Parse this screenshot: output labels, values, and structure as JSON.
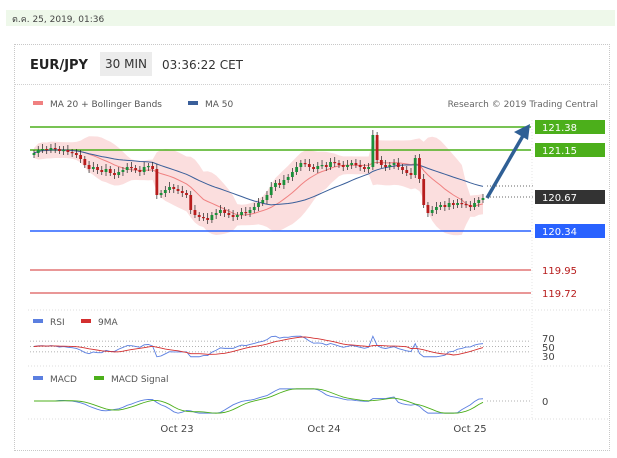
{
  "timestamp": "ต.ค. 25, 2019, 01:36",
  "header": {
    "pair": "EUR/JPY",
    "timeframe": "30 MIN",
    "clock": "03:36:22 CET"
  },
  "legend": {
    "ma20": "MA 20 + Bollinger Bands",
    "ma50": "MA 50",
    "credit": "Research © 2019 Trading Central"
  },
  "colors": {
    "green": "#4caf1b",
    "blue": "#2962ff",
    "red": "#d32f2f",
    "ma50": "#3a5f9a",
    "ma20": "#f08080",
    "band": "#f9d3d3",
    "current": "#333333",
    "arrow": "#2f5f95"
  },
  "levels": [
    {
      "value": "121.38",
      "kind": "resistance"
    },
    {
      "value": "121.15",
      "kind": "resistance"
    },
    {
      "value": "120.34",
      "kind": "support"
    },
    {
      "value": "119.95",
      "kind": "target"
    },
    {
      "value": "119.72",
      "kind": "target"
    }
  ],
  "current_price": "120.67",
  "rsi": {
    "label": "RSI",
    "ma_label": "9MA",
    "levels": [
      "70",
      "50",
      "30"
    ]
  },
  "macd": {
    "label": "MACD",
    "signal_label": "MACD Signal",
    "zero": "0"
  },
  "xaxis": {
    "ticks": [
      "Oct 23",
      "Oct 24",
      "Oct 25"
    ]
  },
  "chart_data": {
    "type": "candlestick",
    "pair": "EUR/JPY",
    "interval": "30 MIN",
    "ylim": [
      119.6,
      121.5
    ],
    "levels": [
      121.38,
      121.15,
      120.34,
      119.95,
      119.72
    ],
    "current": 120.67,
    "x_ticks": [
      "Oct 23",
      "Oct 24",
      "Oct 25"
    ],
    "closes": [
      121.12,
      121.15,
      121.16,
      121.15,
      121.17,
      121.16,
      121.14,
      121.15,
      121.13,
      121.12,
      121.1,
      121.06,
      121.0,
      120.96,
      120.98,
      120.95,
      120.93,
      120.96,
      120.92,
      120.9,
      120.93,
      120.95,
      120.98,
      120.97,
      120.95,
      120.93,
      120.98,
      120.99,
      120.96,
      120.7,
      120.72,
      120.75,
      120.78,
      120.76,
      120.74,
      120.72,
      120.7,
      120.55,
      120.5,
      120.48,
      120.47,
      120.45,
      120.5,
      120.52,
      120.55,
      120.52,
      120.5,
      120.48,
      120.5,
      120.53,
      120.52,
      120.55,
      120.58,
      120.62,
      120.65,
      120.7,
      120.78,
      120.82,
      120.8,
      120.85,
      120.88,
      120.93,
      120.98,
      121.02,
      121.01,
      120.98,
      120.96,
      120.99,
      121.0,
      120.98,
      121.03,
      121.02,
      121.0,
      120.98,
      121.0,
      121.02,
      121.0,
      120.98,
      120.96,
      120.98,
      121.3,
      121.05,
      121.0,
      120.98,
      121.0,
      121.02,
      120.98,
      120.95,
      120.92,
      120.9,
      121.07,
      120.86,
      120.6,
      120.52,
      120.55,
      120.58,
      120.6,
      120.58,
      120.62,
      120.6,
      120.62,
      120.61,
      120.6,
      120.58,
      120.62,
      120.65,
      120.67
    ],
    "rsi_ylim": [
      0,
      100
    ],
    "macd_ylim": [
      -0.15,
      0.15
    ]
  }
}
